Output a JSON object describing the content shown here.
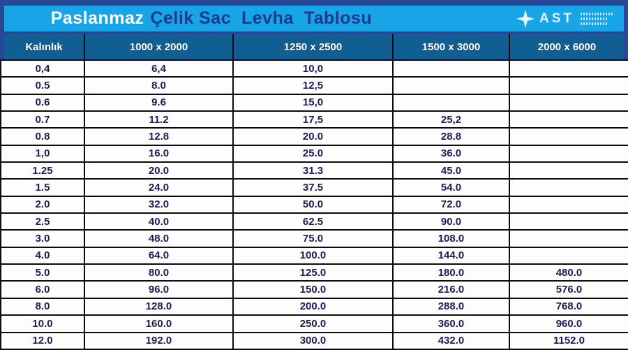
{
  "header": {
    "title_primary": "Paslanmaz",
    "title_secondary": "Çelik Sac  Levha  Tablosu",
    "logo_text": "AST"
  },
  "table": {
    "columns": [
      "Kalınlık",
      "1000 x 2000",
      "1250 x 2500",
      "1500 x 3000",
      "2000 x 6000"
    ],
    "rows": [
      [
        "0,4",
        "6,4",
        "10,0",
        "",
        ""
      ],
      [
        "0.5",
        "8.0",
        "12,5",
        "",
        ""
      ],
      [
        "0.6",
        "9.6",
        "15,0",
        "",
        ""
      ],
      [
        "0.7",
        "11.2",
        "17,5",
        "25,2",
        ""
      ],
      [
        "0.8",
        "12.8",
        "20.0",
        "28.8",
        ""
      ],
      [
        "1,0",
        "16.0",
        "25.0",
        "36.0",
        ""
      ],
      [
        "1.25",
        "20.0",
        "31.3",
        "45.0",
        ""
      ],
      [
        "1.5",
        "24.0",
        "37.5",
        "54.0",
        ""
      ],
      [
        "2.0",
        "32.0",
        "50.0",
        "72.0",
        ""
      ],
      [
        "2.5",
        "40.0",
        "62.5",
        "90.0",
        ""
      ],
      [
        "3.0",
        "48.0",
        "75.0",
        "108.0",
        ""
      ],
      [
        "4.0",
        "64.0",
        "100.0",
        "144.0",
        ""
      ],
      [
        "5.0",
        "80.0",
        "125.0",
        "180.0",
        "480.0"
      ],
      [
        "6.0",
        "96.0",
        "150.0",
        "216.0",
        "576.0"
      ],
      [
        "8.0",
        "128.0",
        "200.0",
        "288.0",
        "768.0"
      ],
      [
        "10.0",
        "160.0",
        "250.0",
        "360.0",
        "960.0"
      ],
      [
        "12.0",
        "192.0",
        "300.0",
        "432.0",
        "1152.0"
      ]
    ]
  },
  "colors": {
    "frame_navy": "#2a4796",
    "title_bar_blue": "#18a5e8",
    "header_bg": "#115e92",
    "title_navy_text": "#1c3a90",
    "cell_text": "#1b1b55",
    "grid_border": "#0b0b0b"
  }
}
